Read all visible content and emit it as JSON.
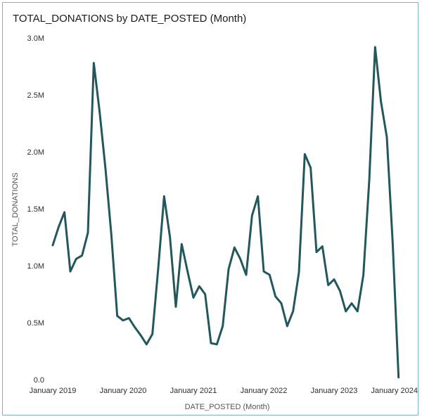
{
  "chart_data": {
    "type": "line",
    "title": "TOTAL_DONATIONS by DATE_POSTED (Month)",
    "xlabel": "DATE_POSTED (Month)",
    "ylabel": "TOTAL_DONATIONS",
    "ylim": [
      0,
      3000000
    ],
    "yticks": [
      {
        "value": 0,
        "label": "0.0"
      },
      {
        "value": 500000,
        "label": "0.5M"
      },
      {
        "value": 1000000,
        "label": "1.0M"
      },
      {
        "value": 1500000,
        "label": "1.5M"
      },
      {
        "value": 2000000,
        "label": "2.0M"
      },
      {
        "value": 2500000,
        "label": "2.5M"
      },
      {
        "value": 3000000,
        "label": "3.0M"
      }
    ],
    "xlim": [
      0,
      60
    ],
    "xticks": [
      {
        "value": 0,
        "label": "January 2019"
      },
      {
        "value": 12,
        "label": "January 2020"
      },
      {
        "value": 24,
        "label": "January 2021"
      },
      {
        "value": 36,
        "label": "January 2022"
      },
      {
        "value": 48,
        "label": "January 2023"
      },
      {
        "value": 60,
        "label": "January 2024"
      }
    ],
    "series": [
      {
        "name": "TOTAL_DONATIONS",
        "color": "#22575c",
        "x": [
          0,
          1,
          2,
          3,
          4,
          5,
          6,
          7,
          8,
          9,
          10,
          11,
          12,
          13,
          14,
          15,
          16,
          17,
          18,
          19,
          20,
          21,
          22,
          23,
          24,
          25,
          26,
          27,
          28,
          29,
          30,
          31,
          32,
          33,
          34,
          35,
          36,
          37,
          38,
          39,
          40,
          41,
          42,
          43,
          44,
          45,
          46,
          47,
          48,
          49,
          50,
          51,
          52,
          53,
          54,
          55,
          56,
          57,
          58,
          59,
          60
        ],
        "values": [
          1180000,
          1340000,
          1470000,
          950000,
          1060000,
          1090000,
          1290000,
          2780000,
          2350000,
          1850000,
          1270000,
          560000,
          520000,
          540000,
          460000,
          390000,
          310000,
          400000,
          980000,
          1610000,
          1250000,
          640000,
          1190000,
          950000,
          720000,
          820000,
          750000,
          320000,
          310000,
          470000,
          970000,
          1160000,
          1060000,
          920000,
          1440000,
          1610000,
          950000,
          920000,
          730000,
          670000,
          470000,
          600000,
          940000,
          1980000,
          1860000,
          1120000,
          1170000,
          830000,
          880000,
          780000,
          600000,
          670000,
          600000,
          920000,
          1750000,
          2920000,
          2440000,
          2130000,
          1200000,
          20000,
          null
        ]
      }
    ]
  }
}
